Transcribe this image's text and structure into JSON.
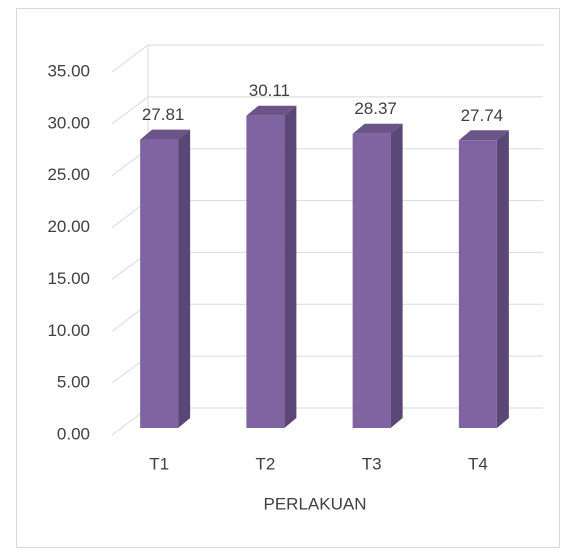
{
  "chart_data": {
    "type": "bar3d",
    "x_label": "PERLAKUAN",
    "categories": [
      "T1",
      "T2",
      "T3",
      "T4"
    ],
    "values": [
      27.81,
      30.11,
      28.37,
      27.74
    ],
    "value_labels": [
      "27.81",
      "30.11",
      "28.37",
      "27.74"
    ],
    "color": "#8064a2",
    "ylim": [
      0,
      35
    ],
    "yticks": [
      {
        "value": 0,
        "label": "0.00"
      },
      {
        "value": 5,
        "label": "5.00"
      },
      {
        "value": 10,
        "label": "10.00"
      },
      {
        "value": 15,
        "label": "15.00"
      },
      {
        "value": 20,
        "label": "20.00"
      },
      {
        "value": 25,
        "label": "25.00"
      },
      {
        "value": 30,
        "label": "30.00"
      },
      {
        "value": 35,
        "label": "35.00"
      }
    ],
    "grid": true
  }
}
